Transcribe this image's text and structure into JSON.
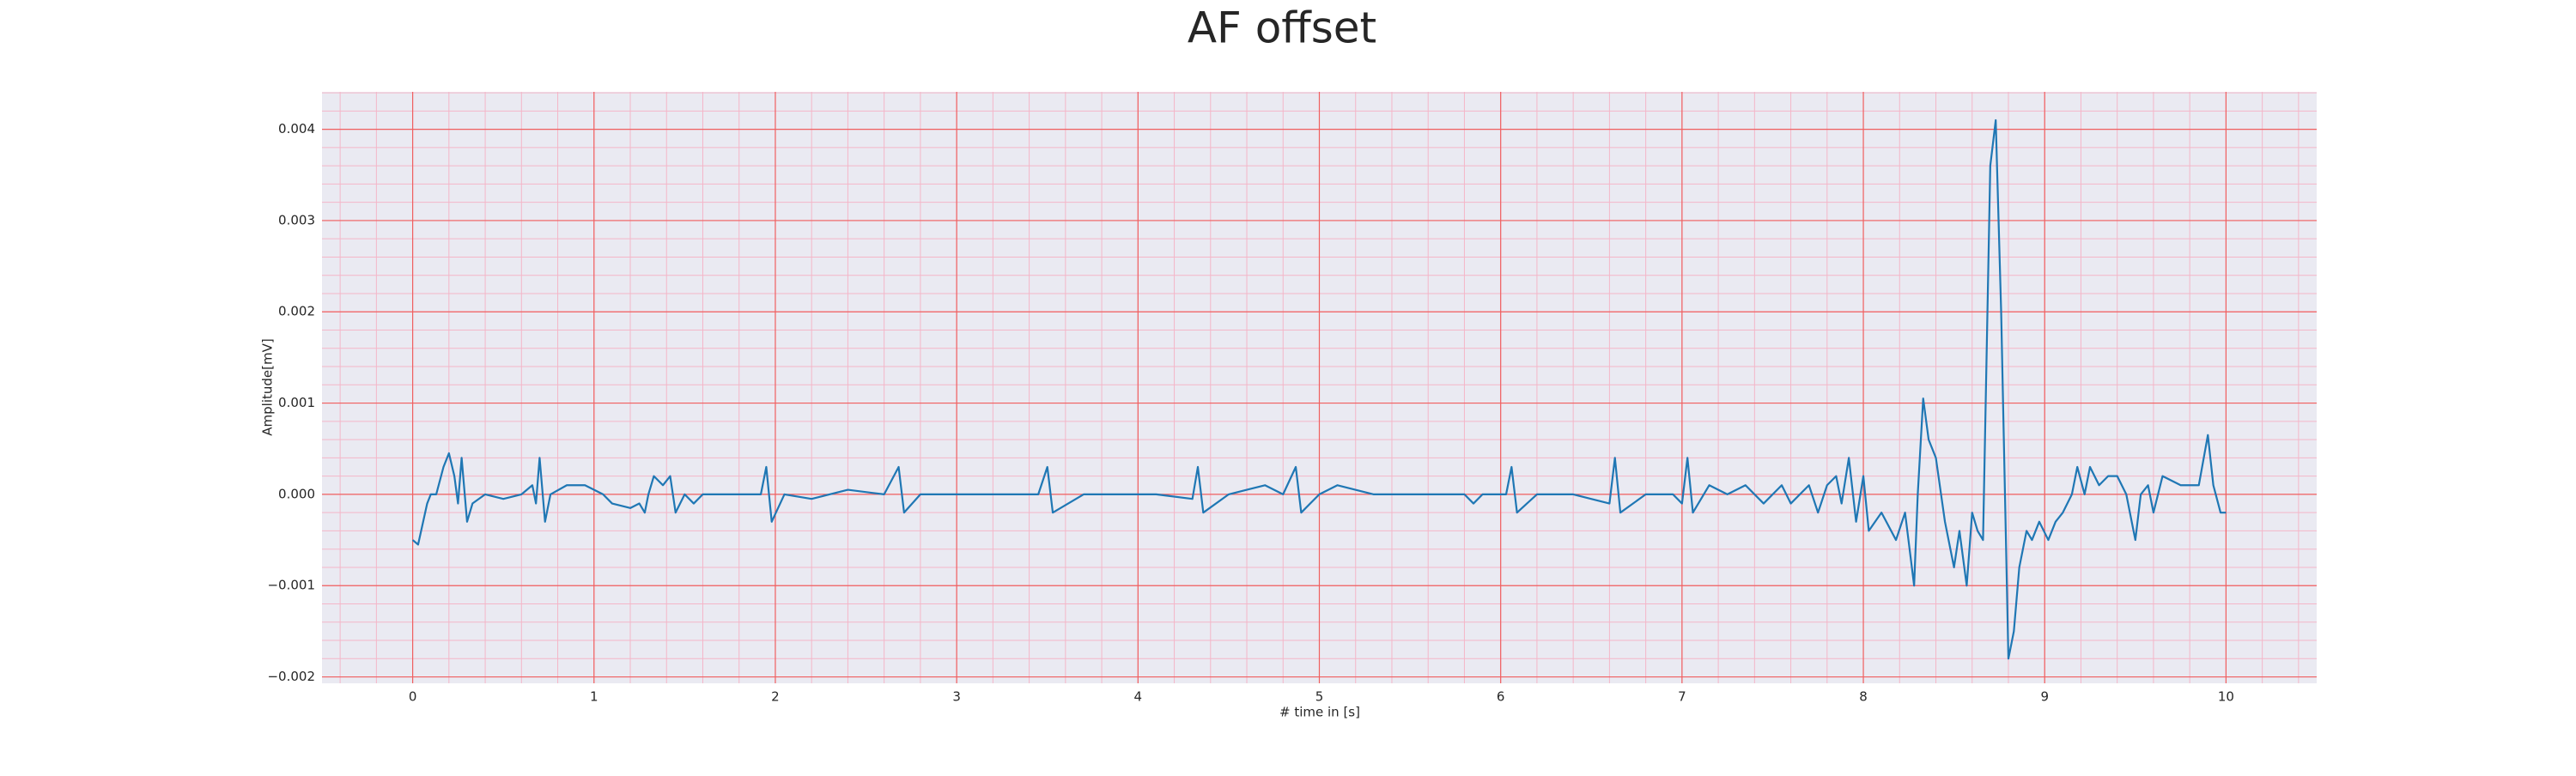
{
  "chart_data": {
    "type": "line",
    "title": "AF offset",
    "xlabel": "# time in [s]",
    "ylabel": "Amplitude[mV]",
    "xlim": [
      -0.5,
      10.5
    ],
    "ylim": [
      -0.00207,
      0.00441
    ],
    "xticks": [
      0,
      1,
      2,
      3,
      4,
      5,
      6,
      7,
      8,
      9,
      10
    ],
    "yticks": [
      {
        "value": -0.002,
        "label": "−0.002"
      },
      {
        "value": -0.001,
        "label": "−0.001"
      },
      {
        "value": 0,
        "label": "0.000"
      },
      0.001,
      0.002,
      0.003,
      0.004
    ],
    "grid": true,
    "minor_grid": true,
    "series": [
      {
        "color": "#1f77b4",
        "x": [
          0,
          0.03,
          0.08,
          0.1,
          0.13,
          0.17,
          0.2,
          0.23,
          0.25,
          0.27,
          0.3,
          0.33,
          0.4,
          0.5,
          0.6,
          0.66,
          0.68,
          0.7,
          0.73,
          0.76,
          0.85,
          0.95,
          1.05,
          1.1,
          1.2,
          1.25,
          1.28,
          1.3,
          1.33,
          1.38,
          1.42,
          1.45,
          1.5,
          1.55,
          1.6,
          1.7,
          1.8,
          1.92,
          1.95,
          1.98,
          2.05,
          2.2,
          2.4,
          2.6,
          2.68,
          2.71,
          2.8,
          3.0,
          3.2,
          3.45,
          3.5,
          3.53,
          3.7,
          3.9,
          4.1,
          4.3,
          4.33,
          4.36,
          4.5,
          4.6,
          4.7,
          4.8,
          4.87,
          4.9,
          5.0,
          5.1,
          5.3,
          5.5,
          5.7,
          5.8,
          5.85,
          5.9,
          6.03,
          6.06,
          6.09,
          6.2,
          6.4,
          6.6,
          6.63,
          6.66,
          6.8,
          6.95,
          7.0,
          7.03,
          7.06,
          7.15,
          7.25,
          7.35,
          7.45,
          7.55,
          7.6,
          7.7,
          7.75,
          7.8,
          7.85,
          7.88,
          7.92,
          7.96,
          8.0,
          8.03,
          8.1,
          8.18,
          8.23,
          8.28,
          8.3,
          8.33,
          8.36,
          8.4,
          8.45,
          8.5,
          8.53,
          8.57,
          8.6,
          8.63,
          8.66,
          8.7,
          8.73,
          8.76,
          8.8,
          8.83,
          8.86,
          8.9,
          8.93,
          8.97,
          9.02,
          9.06,
          9.1,
          9.15,
          9.18,
          9.22,
          9.25,
          9.3,
          9.35,
          9.4,
          9.45,
          9.5,
          9.53,
          9.57,
          9.6,
          9.65,
          9.75,
          9.85,
          9.9,
          9.93,
          9.97,
          10.0
        ],
        "values": [
          -0.0005,
          -0.00055,
          -0.0001,
          0.0,
          0.0,
          0.0003,
          0.00045,
          0.0002,
          -0.0001,
          0.0004,
          -0.0003,
          -0.0001,
          0.0,
          -5e-05,
          0.0,
          0.0001,
          -0.0001,
          0.0004,
          -0.0003,
          0.0,
          0.0001,
          0.0001,
          0.0,
          -0.0001,
          -0.00015,
          -0.0001,
          -0.0002,
          0.0,
          0.0002,
          0.0001,
          0.0002,
          -0.0002,
          0.0,
          -0.0001,
          0.0,
          0.0,
          0.0,
          0.0,
          0.0003,
          -0.0003,
          0.0,
          -5e-05,
          5e-05,
          0.0,
          0.0003,
          -0.0002,
          0.0,
          0.0,
          0.0,
          0.0,
          0.0003,
          -0.0002,
          0.0,
          0.0,
          0.0,
          -5e-05,
          0.0003,
          -0.0002,
          0.0,
          5e-05,
          0.0001,
          0.0,
          0.0003,
          -0.0002,
          0.0,
          0.0001,
          0.0,
          0.0,
          0.0,
          0.0,
          -0.0001,
          0.0,
          0.0,
          0.0003,
          -0.0002,
          0.0,
          0.0,
          -0.0001,
          0.0004,
          -0.0002,
          0.0,
          0.0,
          -0.0001,
          0.0004,
          -0.0002,
          0.0001,
          0.0,
          0.0001,
          -0.0001,
          0.0001,
          -0.0001,
          0.0001,
          -0.0002,
          0.0001,
          0.0002,
          -0.0001,
          0.0004,
          -0.0003,
          0.0002,
          -0.0004,
          -0.0002,
          -0.0005,
          -0.0002,
          -0.001,
          0.0,
          0.00105,
          0.0006,
          0.0004,
          -0.0003,
          -0.0008,
          -0.0004,
          -0.001,
          -0.0002,
          -0.0004,
          -0.0005,
          0.0036,
          0.0041,
          0.002,
          -0.0018,
          -0.0015,
          -0.0008,
          -0.0004,
          -0.0005,
          -0.0003,
          -0.0005,
          -0.0003,
          -0.0002,
          0.0,
          0.0003,
          0.0,
          0.0003,
          0.0001,
          0.0002,
          0.0002,
          0.0,
          -0.0005,
          0.0,
          0.0001,
          -0.0002,
          0.0002,
          0.0001,
          0.0001,
          0.00065,
          0.0001,
          -0.0002,
          -0.0002
        ]
      }
    ]
  }
}
